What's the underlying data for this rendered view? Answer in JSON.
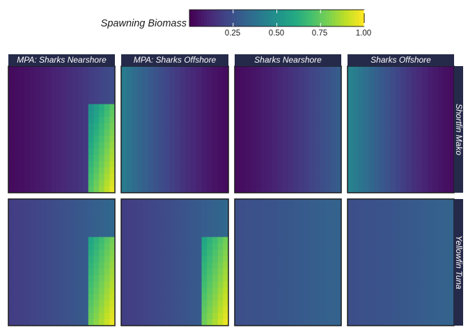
{
  "legend": {
    "title": "Spawning Biomass",
    "ticks": [
      "0.25",
      "0.50",
      "0.75",
      "1.00"
    ],
    "tick_values": [
      0.25,
      0.5,
      0.75,
      1.0
    ],
    "range": [
      0.0,
      1.0
    ]
  },
  "colors": {
    "strip_background": "#252a4a",
    "strip_text": "#ffffff",
    "panel_border": "#1a1a1a",
    "palette": "viridis"
  },
  "chart_data": {
    "type": "heatmap",
    "color_scale": "viridis",
    "value_range": [
      0.0,
      1.0
    ],
    "columns": [
      "MPA: Sharks Nearshore",
      "MPA: Sharks Offshore",
      "Sharks Nearshore",
      "Sharks Offshore"
    ],
    "rows": [
      "Shortfin Mako",
      "Yellowfin Tuna"
    ],
    "grid_size": 20,
    "panels": [
      {
        "column": "MPA: Sharks Nearshore",
        "row": "Shortfin Mako",
        "pattern": "gradient-left-to-right",
        "min": 0.03,
        "max": 0.24,
        "mpa_block": {
          "from_x": 0.74,
          "from_y": 0.3,
          "low": 0.45,
          "high": 1.0
        }
      },
      {
        "column": "MPA: Sharks Offshore",
        "row": "Shortfin Mako",
        "pattern": "gradient-right-to-left",
        "min": 0.03,
        "max": 0.42
      },
      {
        "column": "Sharks Nearshore",
        "row": "Shortfin Mako",
        "pattern": "gradient-left-to-right",
        "min": 0.03,
        "max": 0.3
      },
      {
        "column": "Sharks Offshore",
        "row": "Shortfin Mako",
        "pattern": "gradient-right-to-left",
        "min": 0.03,
        "max": 0.46
      },
      {
        "column": "MPA: Sharks Nearshore",
        "row": "Yellowfin Tuna",
        "pattern": "gradient-left-to-right",
        "min": 0.18,
        "max": 0.34,
        "mpa_block": {
          "from_x": 0.74,
          "from_y": 0.3,
          "low": 0.55,
          "high": 1.0
        }
      },
      {
        "column": "MPA: Sharks Offshore",
        "row": "Yellowfin Tuna",
        "pattern": "gradient-left-to-right",
        "min": 0.18,
        "max": 0.34,
        "mpa_block": {
          "from_x": 0.74,
          "from_y": 0.3,
          "low": 0.55,
          "high": 1.0
        }
      },
      {
        "column": "Sharks Nearshore",
        "row": "Yellowfin Tuna",
        "pattern": "gradient-left-to-right",
        "min": 0.24,
        "max": 0.32
      },
      {
        "column": "Sharks Offshore",
        "row": "Yellowfin Tuna",
        "pattern": "gradient-left-to-right",
        "min": 0.24,
        "max": 0.32
      }
    ]
  }
}
